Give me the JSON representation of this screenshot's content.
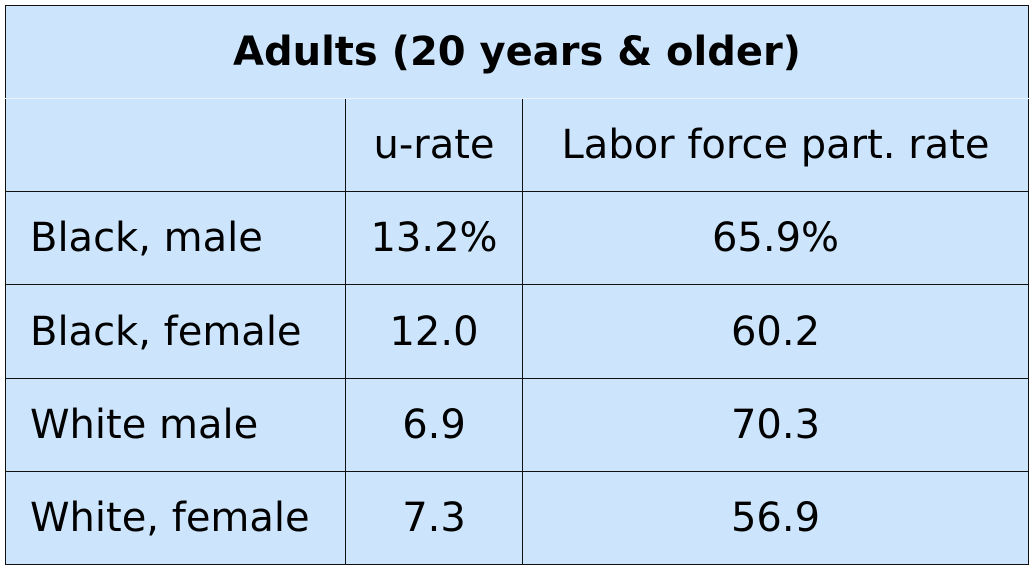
{
  "table": {
    "title": "Adults (20 years & older)",
    "columns": [
      "",
      "u-rate",
      "Labor force part. rate"
    ],
    "rows": [
      {
        "label": "Black, male",
        "u_rate": "13.2%",
        "lfpr": "65.9%"
      },
      {
        "label": "Black, female",
        "u_rate": "12.0",
        "lfpr": "60.2"
      },
      {
        "label": "White male",
        "u_rate": "6.9",
        "lfpr": "70.3"
      },
      {
        "label": "White, female",
        "u_rate": "7.3",
        "lfpr": "56.9"
      }
    ]
  },
  "colors": {
    "cell_background": "#cce5fc",
    "border": "#111111"
  }
}
